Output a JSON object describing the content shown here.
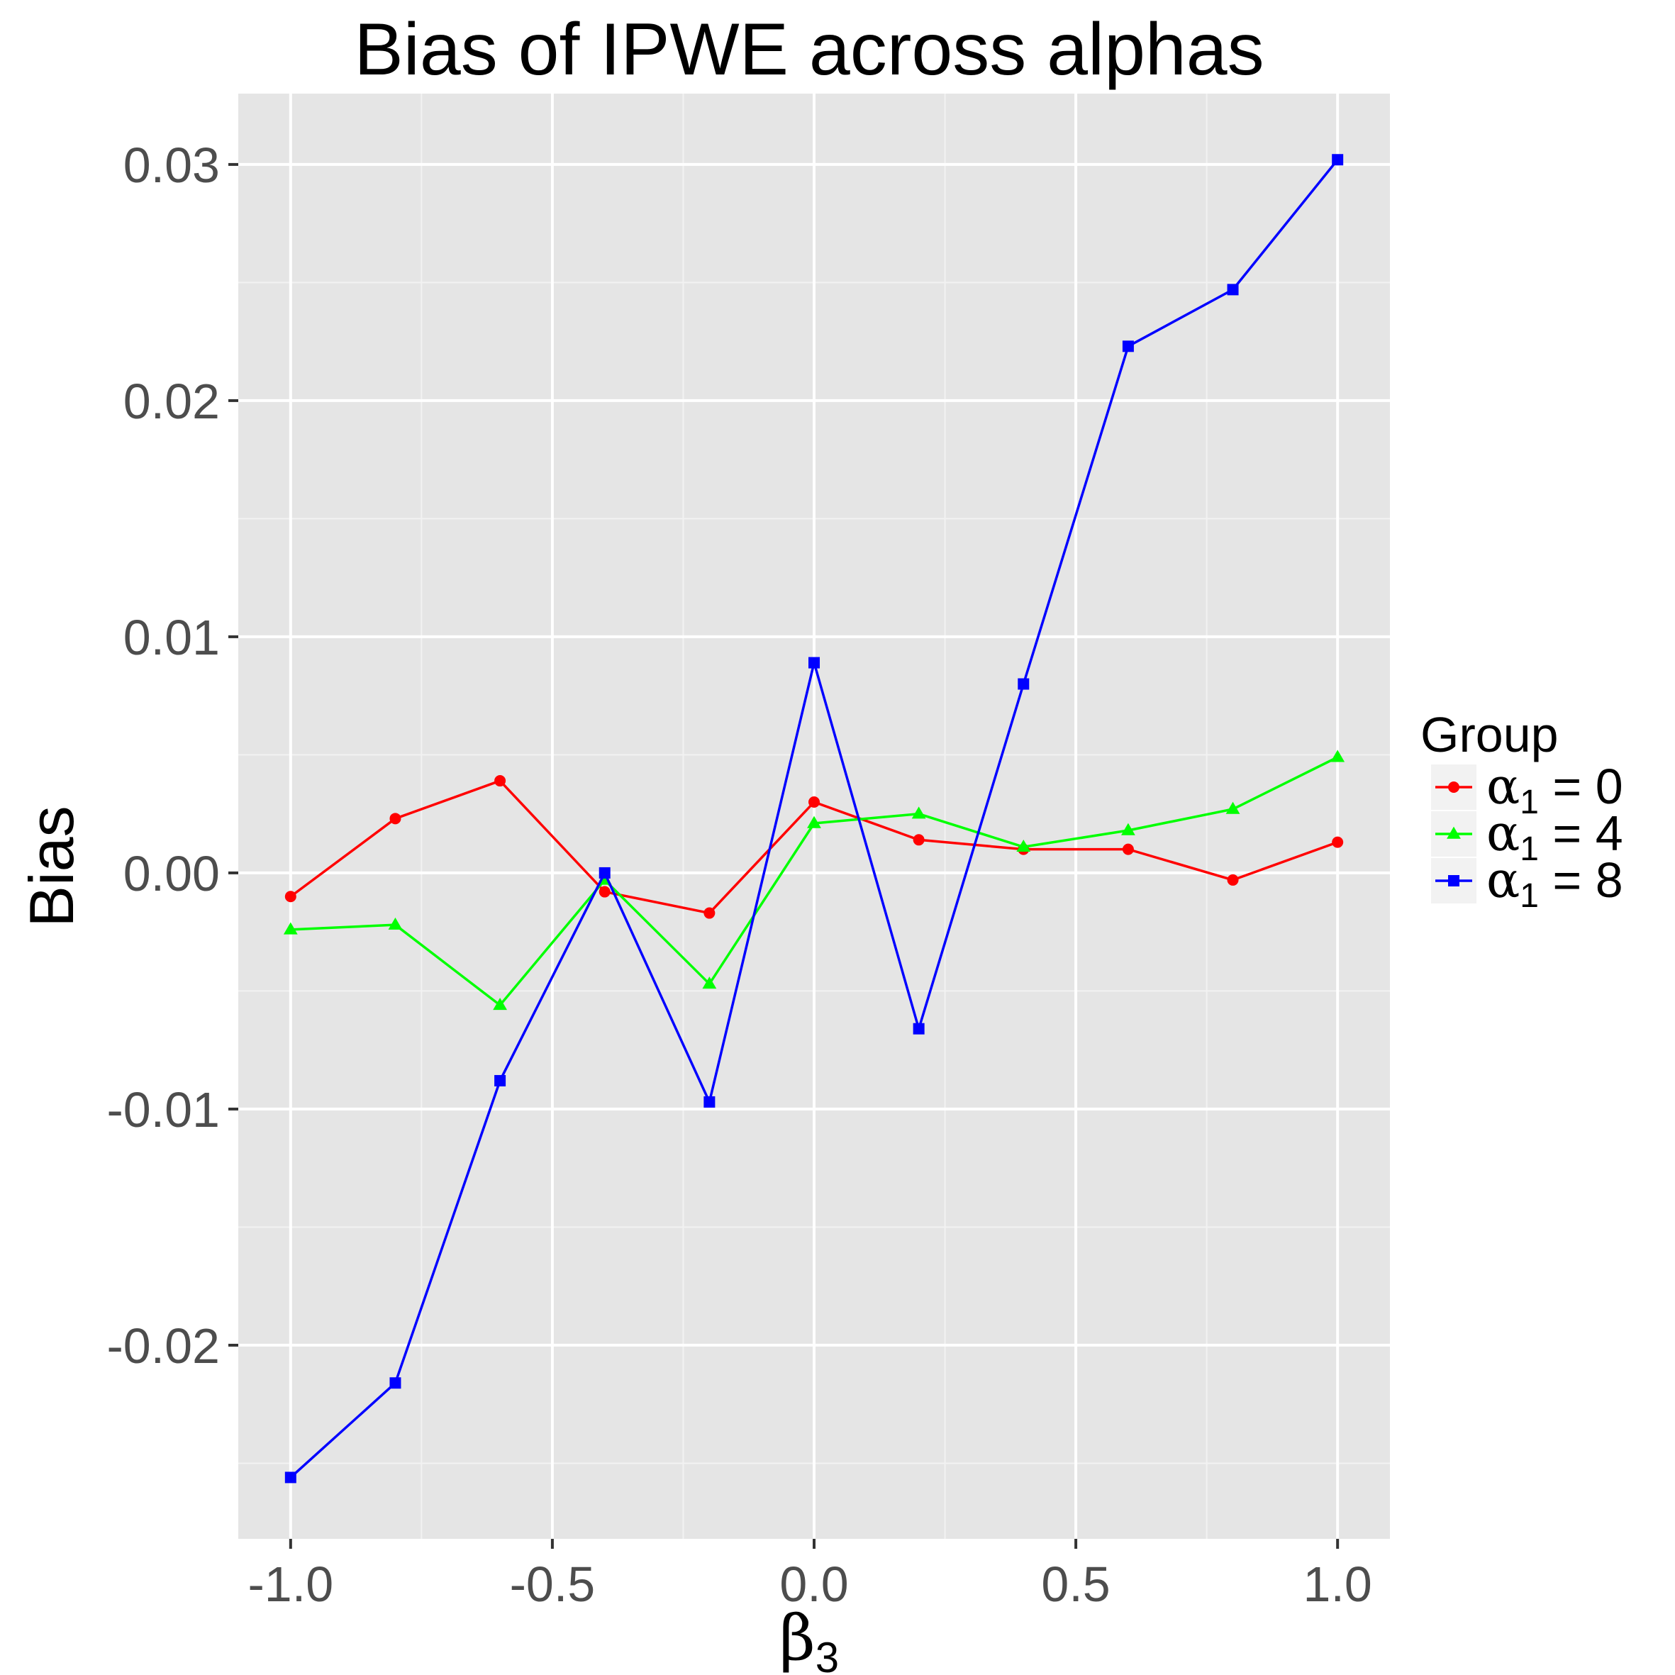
{
  "chart_data": {
    "type": "line",
    "title": "Bias of IPWE across alphas",
    "xlabel": "β",
    "xlabel_subscript": "3",
    "ylabel": "Bias",
    "x": [
      -1.0,
      -0.8,
      -0.6,
      -0.4,
      -0.2,
      0.0,
      0.2,
      0.4,
      0.6,
      0.8,
      1.0
    ],
    "xlim": [
      -1.1,
      1.1
    ],
    "ylim": [
      -0.0282,
      0.033
    ],
    "x_ticks": [
      -1.0,
      -0.5,
      0.0,
      0.5,
      1.0
    ],
    "x_tick_labels": [
      "-1.0",
      "-0.5",
      "0.0",
      "0.5",
      "1.0"
    ],
    "y_ticks": [
      -0.02,
      -0.01,
      0.0,
      0.01,
      0.02,
      0.03
    ],
    "y_tick_labels": [
      "-0.02",
      "-0.01",
      "0.00",
      "0.01",
      "0.02",
      "0.03"
    ],
    "grid": true,
    "legend_position": "right",
    "legend_title": "Group",
    "series": [
      {
        "name": "α1 = 0",
        "label_greek": "α",
        "label_subscript": "1",
        "label_rest": " = 0",
        "color": "#ff0000",
        "marker": "circle",
        "values": [
          -0.001,
          0.0023,
          0.0039,
          -0.0008,
          -0.0017,
          0.003,
          0.0014,
          0.001,
          0.001,
          -0.0003,
          0.0013
        ]
      },
      {
        "name": "α1 = 4",
        "label_greek": "α",
        "label_subscript": "1",
        "label_rest": " = 4",
        "color": "#00ff00",
        "marker": "triangle",
        "values": [
          -0.0024,
          -0.0022,
          -0.0056,
          -0.0003,
          -0.0047,
          0.0021,
          0.0025,
          0.0011,
          0.0018,
          0.0027,
          0.0049
        ]
      },
      {
        "name": "α1 = 8",
        "label_greek": "α",
        "label_subscript": "1",
        "label_rest": " = 8",
        "color": "#0000ff",
        "marker": "square",
        "values": [
          -0.0256,
          -0.0216,
          -0.0088,
          0.0,
          -0.0097,
          0.0089,
          -0.0066,
          0.008,
          0.0223,
          0.0247,
          0.0302
        ]
      }
    ]
  }
}
